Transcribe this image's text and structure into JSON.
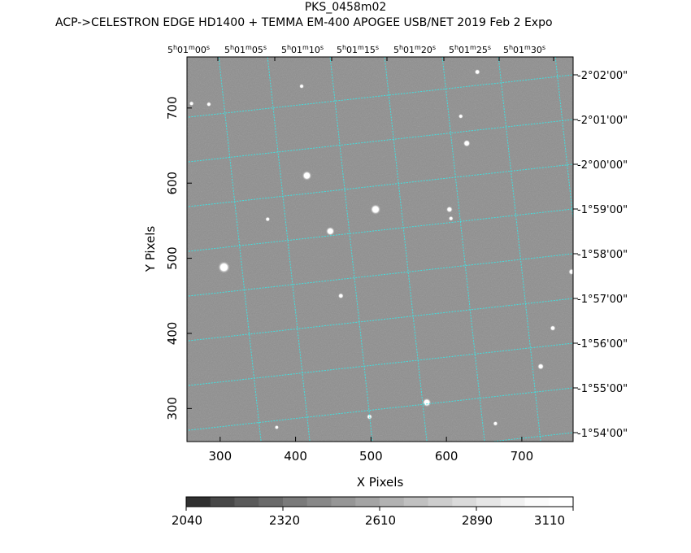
{
  "title": "PKS_0458m02",
  "subtitle": "ACP->CELESTRON EDGE HD1400 + TEMMA EM-400 APOGEE USB/NET   2019 Feb  2    Expo",
  "chart_data": {
    "type": "heatmap",
    "xlabel": "X Pixels",
    "ylabel": "Y Pixels",
    "xlim": [
      256,
      768
    ],
    "ylim": [
      256,
      768
    ],
    "x_ticks": [
      300,
      400,
      500,
      600,
      700
    ],
    "y_ticks": [
      300,
      400,
      500,
      600,
      700
    ],
    "ra_ticks": [
      "5h01m00s",
      "5h01m05s",
      "5h01m10s",
      "5h01m15s",
      "5h01m20s",
      "5h01m25s",
      "5h01m30s"
    ],
    "dec_ticks": [
      "-2°02'00\"",
      "-2°01'00\"",
      "-2°00'00\"",
      "-1°59'00\"",
      "-1°58'00\"",
      "-1°57'00\"",
      "-1°56'00\"",
      "-1°55'00\"",
      "-1°54'00\""
    ],
    "colorbar": {
      "ticks": [
        2040,
        2320,
        2610,
        2890,
        3110
      ],
      "colors": [
        "#303030",
        "#484848",
        "#5a5a5a",
        "#6a6a6a",
        "#7a7a7a",
        "#888888",
        "#969696",
        "#a4a4a4",
        "#b2b2b2",
        "#c0c0c0",
        "#cdcdcd",
        "#dadada",
        "#e6e6e6",
        "#f1f1f1",
        "#fbfbfb",
        "#ffffff"
      ]
    },
    "grid_color": "#40e0e0",
    "stars": [
      {
        "x": 305,
        "y": 488,
        "size": 6
      },
      {
        "x": 506,
        "y": 565,
        "size": 5
      },
      {
        "x": 415,
        "y": 610,
        "size": 4.5
      },
      {
        "x": 446,
        "y": 536,
        "size": 4
      },
      {
        "x": 574,
        "y": 308,
        "size": 4
      },
      {
        "x": 627,
        "y": 653,
        "size": 3
      },
      {
        "x": 604,
        "y": 565,
        "size": 2.5
      },
      {
        "x": 725,
        "y": 356,
        "size": 2.5
      },
      {
        "x": 741,
        "y": 407,
        "size": 2
      },
      {
        "x": 766,
        "y": 482,
        "size": 2.5
      },
      {
        "x": 460,
        "y": 450,
        "size": 2
      },
      {
        "x": 498,
        "y": 289,
        "size": 2
      },
      {
        "x": 665,
        "y": 280,
        "size": 1.5
      },
      {
        "x": 641,
        "y": 748,
        "size": 2
      },
      {
        "x": 619,
        "y": 689,
        "size": 1.5
      },
      {
        "x": 262,
        "y": 706,
        "size": 1.5
      },
      {
        "x": 285,
        "y": 705,
        "size": 1.5
      },
      {
        "x": 363,
        "y": 552,
        "size": 1.5
      },
      {
        "x": 408,
        "y": 729,
        "size": 1.5
      },
      {
        "x": 606,
        "y": 553,
        "size": 1.5
      },
      {
        "x": 375,
        "y": 275,
        "size": 1.2
      }
    ]
  }
}
